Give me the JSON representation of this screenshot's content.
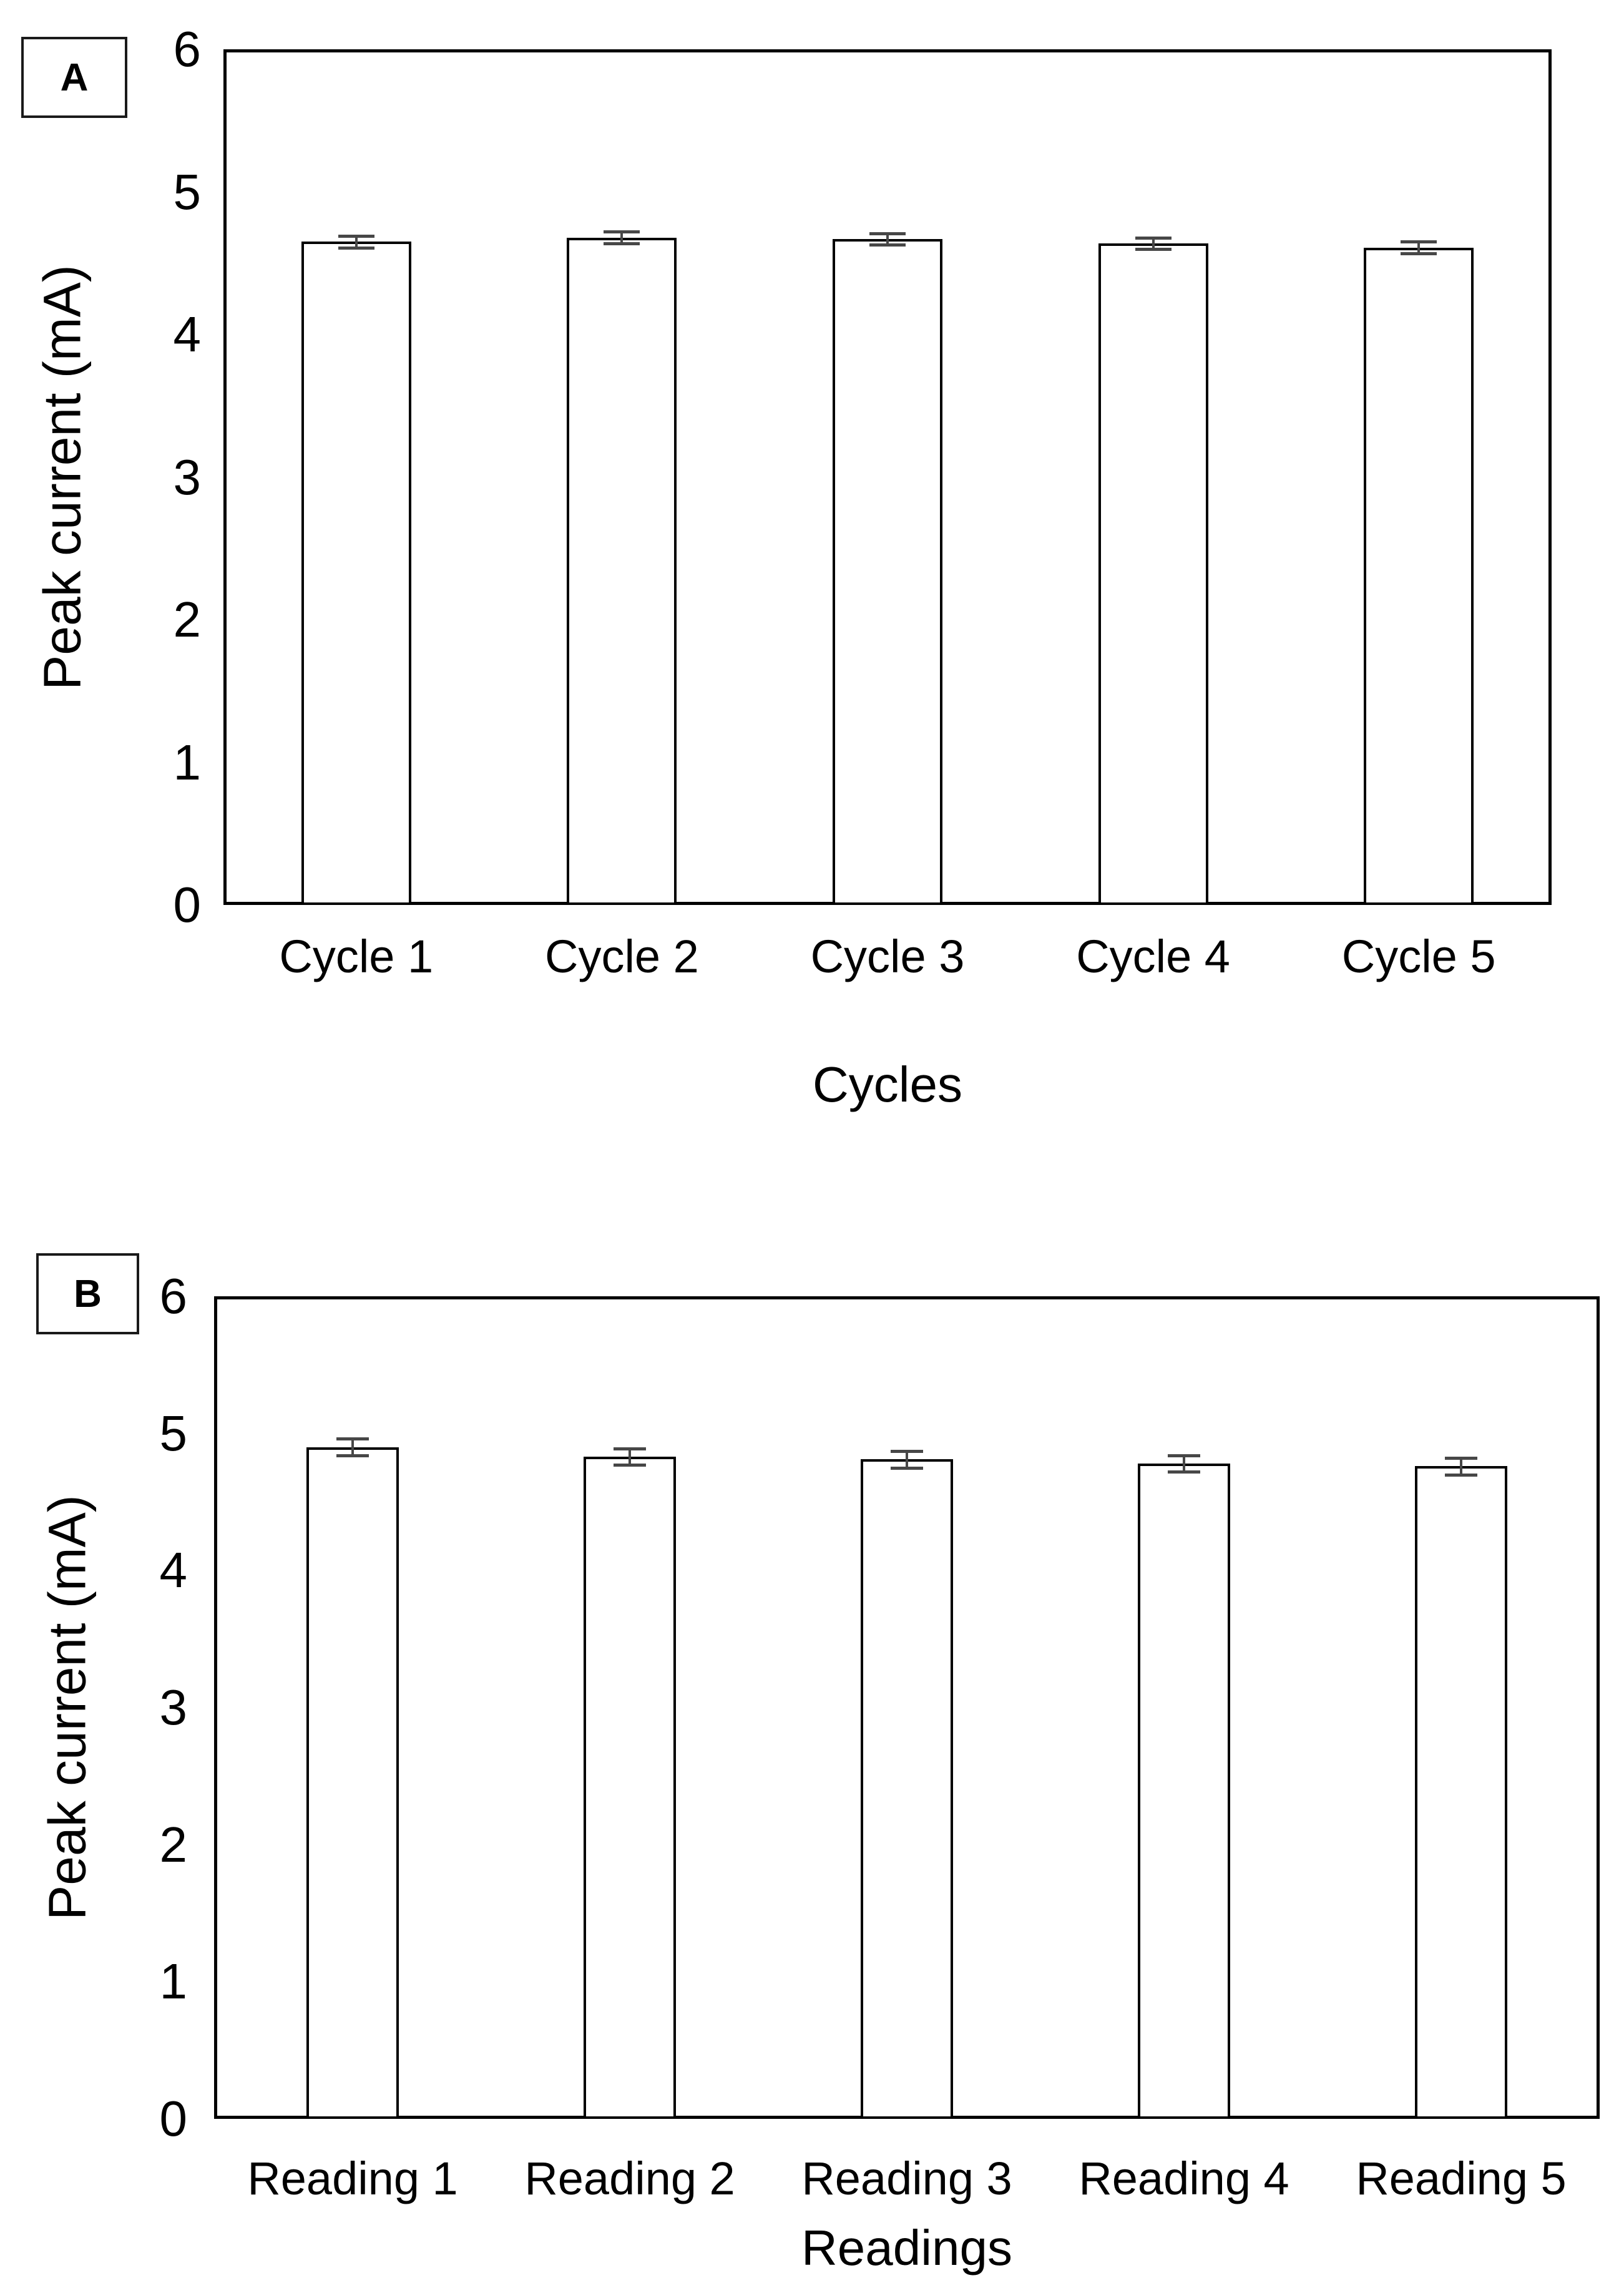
{
  "figure": {
    "background": "#ffffff",
    "text_color": "#000000",
    "panels": [
      {
        "label": "A"
      },
      {
        "label": "B"
      }
    ]
  },
  "chart_data": [
    {
      "type": "bar",
      "panel_label": "A",
      "title": "",
      "xlabel": "Cycles",
      "ylabel": "Peak current (mA)",
      "categories": [
        "Cycle 1",
        "Cycle 2",
        "Cycle 3",
        "Cycle 4",
        "Cycle 5"
      ],
      "values": [
        4.65,
        4.68,
        4.67,
        4.64,
        4.61
      ],
      "errors": [
        0.04,
        0.04,
        0.04,
        0.04,
        0.04
      ],
      "ylim": [
        0,
        6
      ],
      "yticks": [
        0,
        1,
        2,
        3,
        4,
        5,
        6
      ],
      "grid": false,
      "legend": "none",
      "bar_fill": "#ffffff",
      "bar_border": "#000000",
      "error_color": "#474747"
    },
    {
      "type": "bar",
      "panel_label": "B",
      "title": "",
      "xlabel": "Readings",
      "ylabel": "Peak current (mA)",
      "categories": [
        "Reading 1",
        "Reading 2",
        "Reading 3",
        "Reading 4",
        "Reading 5"
      ],
      "values": [
        4.9,
        4.83,
        4.81,
        4.78,
        4.76
      ],
      "errors": [
        0.06,
        0.06,
        0.06,
        0.06,
        0.06
      ],
      "ylim": [
        0,
        6
      ],
      "yticks": [
        0,
        1,
        2,
        3,
        4,
        5,
        6
      ],
      "grid": false,
      "legend": "none",
      "bar_fill": "#ffffff",
      "bar_border": "#000000",
      "error_color": "#474747"
    }
  ]
}
